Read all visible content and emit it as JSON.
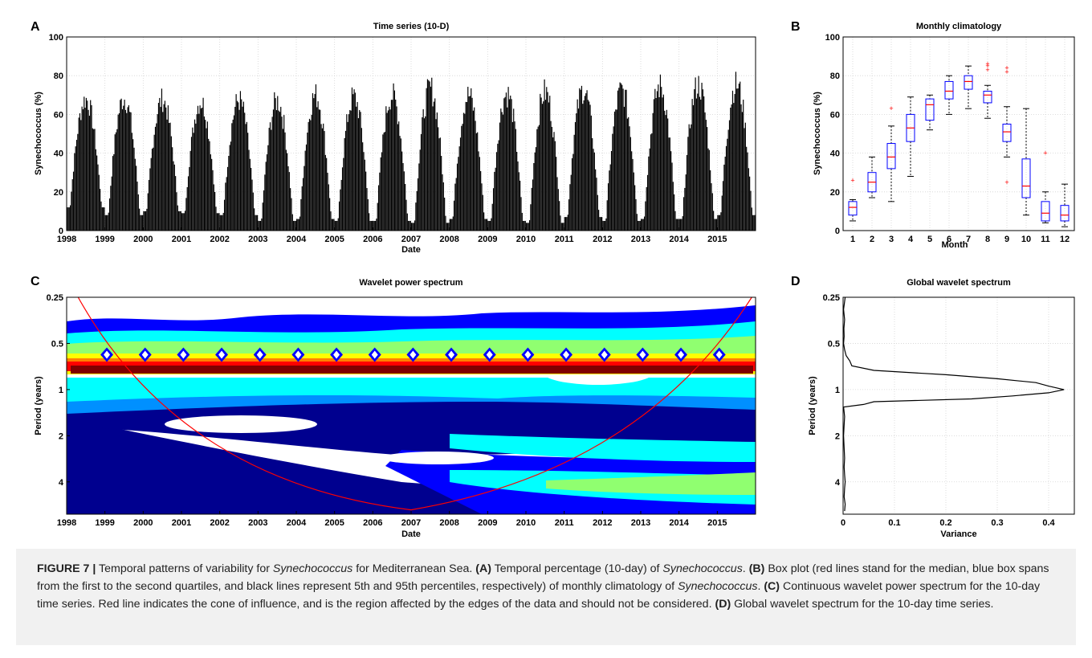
{
  "panels": {
    "A": {
      "letter": "A",
      "title": "Time series (10-D)",
      "xlabel": "Date",
      "ylabel": "Synechococcus (%)"
    },
    "B": {
      "letter": "B",
      "title": "Monthly climatology",
      "xlabel": "Month",
      "ylabel": "Synechococcus (%)"
    },
    "C": {
      "letter": "C",
      "title": "Wavelet power spectrum",
      "xlabel": "Date",
      "ylabel": "Period (years)"
    },
    "D": {
      "letter": "D",
      "title": "Global wavelet spectrum",
      "xlabel": "Variance",
      "ylabel": "Period (years)"
    }
  },
  "caption": {
    "label": "FIGURE 7 |",
    "p1": " Temporal patterns of variability for ",
    "species1": "Synechococcus",
    "p2": " for Mediterranean Sea. ",
    "tagA": "(A)",
    "p3": " Temporal percentage (10-day) of ",
    "species2": "Synechococcus",
    "p4": ". ",
    "tagB": "(B)",
    "p5": " Box plot (red lines stand for the median, blue box spans from the first to the second quartiles, and black lines represent 5th and 95th percentiles, respectively) of monthly climatology of ",
    "species3": "Synechococcus",
    "p6": ". ",
    "tagC": "(C)",
    "p7": " Continuous wavelet power spectrum for the 10-day time series. Red line indicates the cone of influence, and is the region affected by the edges of the data and should not be considered. ",
    "tagD": "(D)",
    "p8": " Global wavelet spectrum for the 10-day time series."
  },
  "chart_data": [
    {
      "id": "A",
      "type": "bar",
      "title": "Time series (10-D)",
      "xlabel": "Date",
      "ylabel": "Synechococcus (%)",
      "xlim": [
        1998,
        2016
      ],
      "ylim": [
        0,
        100
      ],
      "xticks": [
        "1998",
        "1999",
        "2000",
        "2001",
        "2002",
        "2003",
        "2004",
        "2005",
        "2006",
        "2007",
        "2008",
        "2009",
        "2010",
        "2011",
        "2012",
        "2013",
        "2014",
        "2015"
      ],
      "yticks": [
        "0",
        "20",
        "40",
        "60",
        "80",
        "100"
      ],
      "bar_color": "#000000",
      "annual_peaks": {
        "years": [
          1998,
          1999,
          2000,
          2001,
          2002,
          2003,
          2004,
          2005,
          2006,
          2007,
          2008,
          2009,
          2010,
          2011,
          2012,
          2013,
          2014,
          2015
        ],
        "peak": [
          74,
          75,
          74,
          73,
          74,
          74,
          77,
          76,
          77,
          81,
          77,
          78,
          79,
          80,
          80,
          82,
          83,
          83
        ],
        "minimum": [
          12,
          8,
          10,
          9,
          8,
          5,
          6,
          5,
          5,
          4,
          6,
          5,
          4,
          7,
          5,
          6,
          6,
          8
        ]
      }
    },
    {
      "id": "B",
      "type": "box",
      "title": "Monthly climatology",
      "xlabel": "Month",
      "ylabel": "Synechococcus (%)",
      "ylim": [
        0,
        100
      ],
      "categories": [
        "1",
        "2",
        "3",
        "4",
        "5",
        "6",
        "7",
        "8",
        "9",
        "10",
        "11",
        "12"
      ],
      "yticks": [
        "0",
        "20",
        "40",
        "60",
        "80",
        "100"
      ],
      "median": [
        12,
        25,
        38,
        53,
        65,
        72,
        77,
        70,
        51,
        23,
        9,
        8
      ],
      "q1": [
        8,
        20,
        32,
        46,
        57,
        68,
        73,
        66,
        46,
        17,
        5,
        5
      ],
      "q3": [
        15,
        30,
        45,
        60,
        68,
        77,
        80,
        72,
        55,
        37,
        15,
        13
      ],
      "whisker_low": [
        5,
        17,
        15,
        28,
        52,
        60,
        63,
        58,
        38,
        8,
        4,
        2
      ],
      "whisker_high": [
        16,
        38,
        54,
        69,
        70,
        80,
        85,
        75,
        64,
        63,
        20,
        24
      ],
      "outliers": [
        [
          1,
          26
        ],
        [
          3,
          63
        ],
        [
          8,
          83
        ],
        [
          8,
          85
        ],
        [
          8,
          86
        ],
        [
          9,
          25
        ],
        [
          9,
          82
        ],
        [
          9,
          84
        ],
        [
          11,
          40
        ]
      ],
      "box_color": "#0000ff",
      "median_color": "#ff0000",
      "outlier_color": "#ff0000"
    },
    {
      "id": "C",
      "type": "heatmap",
      "title": "Wavelet power spectrum",
      "xlabel": "Date",
      "ylabel": "Period (years)",
      "xlim": [
        1998,
        2016
      ],
      "xticks": [
        "1998",
        "1999",
        "2000",
        "2001",
        "2002",
        "2003",
        "2004",
        "2005",
        "2006",
        "2007",
        "2008",
        "2009",
        "2010",
        "2011",
        "2012",
        "2013",
        "2014",
        "2015"
      ],
      "yticks": [
        "0.25",
        "0.5",
        "1",
        "2",
        "4"
      ],
      "yscale": "log2",
      "dominant_period_band": [
        0.8,
        1.25
      ],
      "colors": [
        "#ffffff",
        "#00008f",
        "#0000ff",
        "#0090ff",
        "#00ffff",
        "#90ff70",
        "#ffff00",
        "#ff8000",
        "#ff0000",
        "#800000"
      ],
      "cone_of_influence_color": "#ff0000"
    },
    {
      "id": "D",
      "type": "line",
      "title": "Global wavelet spectrum",
      "xlabel": "Variance",
      "ylabel": "Period (years)",
      "xlim": [
        0,
        0.45
      ],
      "xticks": [
        "0",
        "0.1",
        "0.2",
        "0.3",
        "0.4"
      ],
      "yticks": [
        "0.25",
        "0.5",
        "1",
        "2",
        "4"
      ],
      "yscale": "log2",
      "period": [
        0.25,
        0.3,
        0.35,
        0.4,
        0.45,
        0.5,
        0.55,
        0.6,
        0.65,
        0.7,
        0.75,
        0.8,
        0.85,
        0.9,
        0.95,
        1.0,
        1.05,
        1.1,
        1.15,
        1.2,
        1.25,
        1.3,
        1.4,
        1.5,
        1.7,
        2.0,
        2.4,
        2.8,
        3.2,
        3.6,
        4.0,
        4.4,
        5.0,
        5.6,
        6.2
      ],
      "variance": [
        0.004,
        0.001,
        0.003,
        0.0015,
        0.002,
        0.001,
        0.003,
        0.006,
        0.013,
        0.017,
        0.06,
        0.2,
        0.3,
        0.375,
        0.4,
        0.43,
        0.4,
        0.33,
        0.25,
        0.06,
        0.04,
        0.001,
        0.002,
        0.003,
        0.002,
        0.001,
        0.002,
        0.003,
        0.002,
        0.003,
        0.004,
        0.003,
        0.002,
        0.004,
        0.003
      ]
    }
  ]
}
